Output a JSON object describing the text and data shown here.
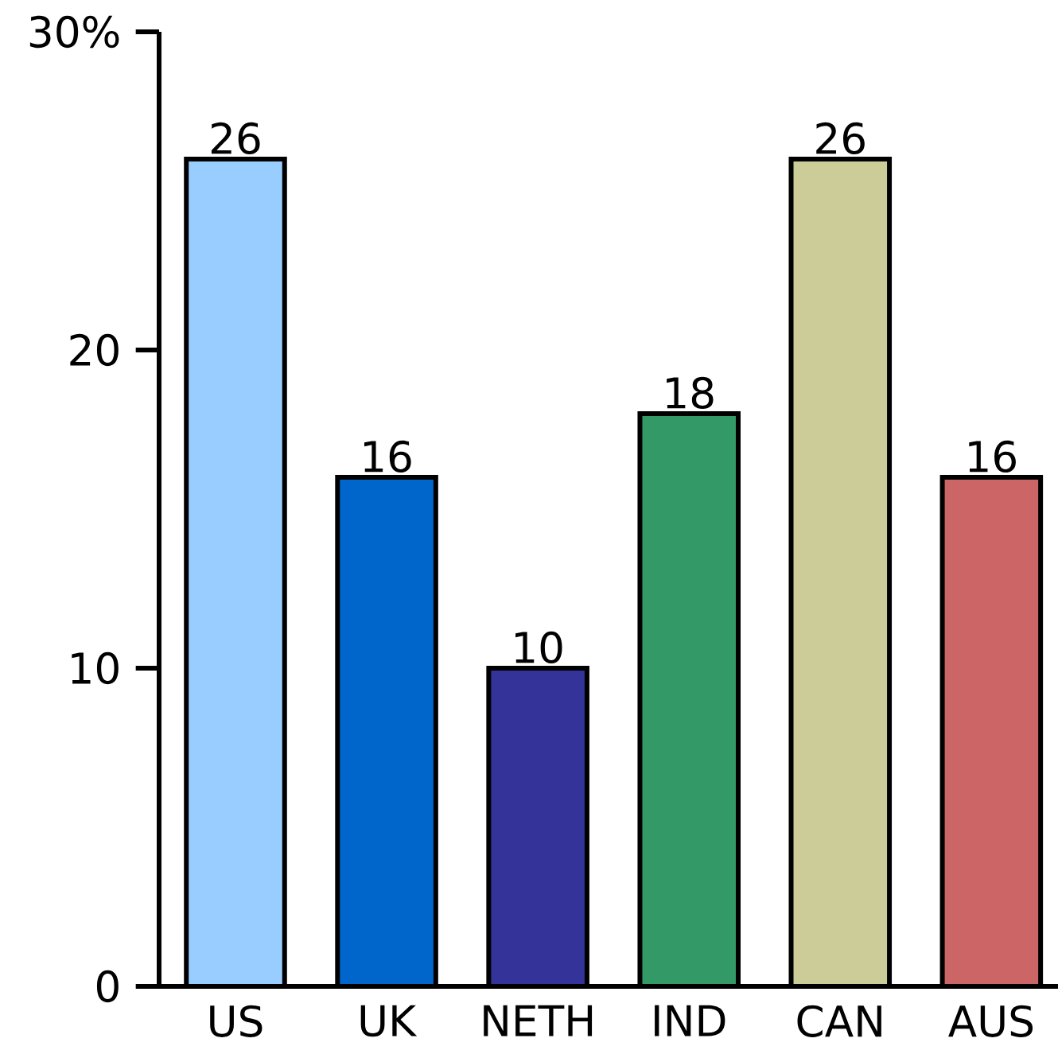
{
  "chart_data": {
    "type": "bar",
    "categories": [
      "US",
      "UK",
      "NETH",
      "IND",
      "CAN",
      "AUS"
    ],
    "values": [
      26,
      16,
      10,
      18,
      26,
      16
    ],
    "colors": [
      "#99ccff",
      "#0066cc",
      "#333399",
      "#339966",
      "#cccc99",
      "#cc6666"
    ],
    "ylim": [
      0,
      30
    ],
    "yticks": [
      0,
      10,
      20,
      {
        "value": 30,
        "label": "30%"
      }
    ],
    "data_labels": true
  }
}
